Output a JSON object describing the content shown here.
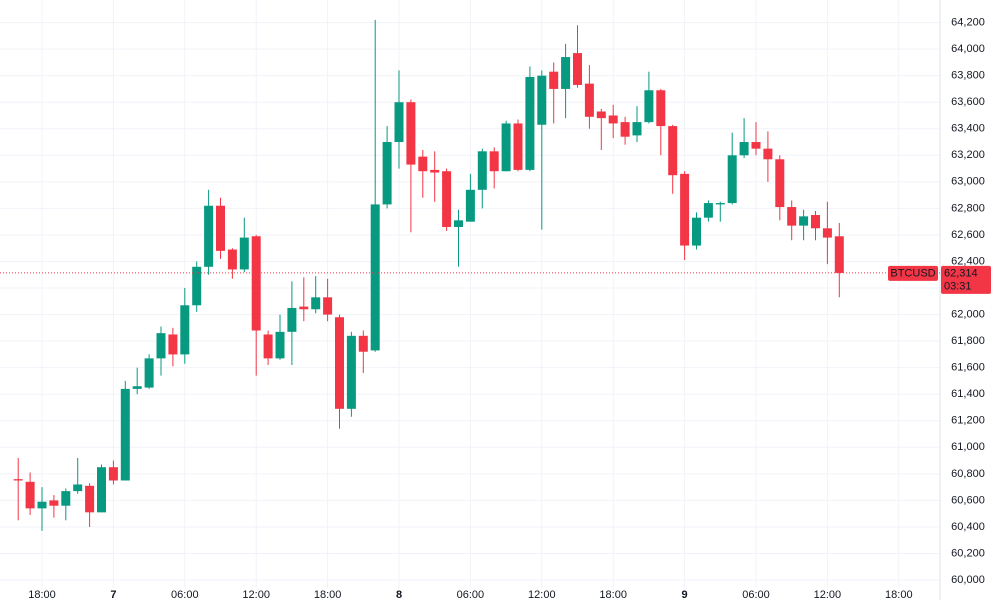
{
  "chart_data": {
    "type": "candlestick",
    "symbol": "BTCUSD",
    "last_price": {
      "value": 62314,
      "label": "62,314"
    },
    "countdown": "03:31",
    "up_color": "#089981",
    "down_color": "#f23645",
    "grid": true,
    "categories": [
      null,
      null,
      "18:00",
      null,
      null,
      null,
      null,
      null,
      "7",
      null,
      null,
      null,
      null,
      null,
      "06:00",
      null,
      null,
      null,
      null,
      null,
      "12:00",
      null,
      null,
      null,
      null,
      null,
      "18:00",
      null,
      null,
      null,
      null,
      null,
      "8",
      null,
      null,
      null,
      null,
      null,
      "06:00",
      null,
      null,
      null,
      null,
      null,
      "12:00",
      null,
      null,
      null,
      null,
      null,
      "18:00",
      null,
      null,
      null,
      null,
      null,
      "9",
      null,
      null,
      null,
      null,
      null,
      "06:00",
      null,
      null,
      null,
      null,
      null,
      "12:00",
      null,
      null,
      null,
      null,
      null,
      "18:00"
    ],
    "open": [
      60760,
      60740,
      60540,
      60600,
      60560,
      60670,
      60710,
      60510,
      60850,
      60750,
      61440,
      61450,
      61670,
      61850,
      61700,
      62070,
      62360,
      62820,
      62490,
      62340,
      62590,
      61850,
      61670,
      61870,
      62060,
      62040,
      62130,
      61980,
      61290,
      61840,
      61730,
      62830,
      63300,
      63600,
      63190,
      63090,
      63080,
      62660,
      62700,
      62940,
      63230,
      63080,
      63440,
      63090,
      63430,
      63830,
      63700,
      63970,
      63740,
      63530,
      63500,
      63450,
      63350,
      63450,
      63690,
      63420,
      63060,
      62520,
      62730,
      62830,
      62840,
      63200,
      63300,
      63250,
      63170,
      62810,
      62670,
      62750,
      62650,
      62590,
      null,
      null,
      null,
      null,
      null
    ],
    "high": [
      60920,
      60810,
      60700,
      60640,
      60690,
      60920,
      60730,
      60870,
      60900,
      61500,
      61600,
      61700,
      61910,
      61900,
      62200,
      62400,
      62940,
      62880,
      62500,
      62730,
      62600,
      61880,
      62000,
      62250,
      62280,
      62290,
      62270,
      62000,
      61870,
      61880,
      64220,
      63420,
      63840,
      63620,
      63240,
      63230,
      63100,
      62790,
      63060,
      63250,
      63260,
      63460,
      63470,
      63870,
      63840,
      63900,
      64040,
      64180,
      63880,
      63550,
      63580,
      63490,
      63570,
      63830,
      63700,
      63430,
      63080,
      62770,
      62860,
      62850,
      63370,
      63480,
      63450,
      63380,
      63200,
      62860,
      62790,
      62780,
      62850,
      62690,
      null,
      null,
      null,
      null,
      null
    ],
    "low": [
      60450,
      60490,
      60370,
      60470,
      60450,
      60650,
      60400,
      60510,
      60720,
      60750,
      61400,
      61440,
      61540,
      61610,
      61630,
      62020,
      62300,
      62420,
      62270,
      62320,
      61540,
      61620,
      61660,
      61620,
      61950,
      62010,
      61950,
      61140,
      61230,
      61560,
      61720,
      62800,
      63100,
      62620,
      62880,
      62850,
      62630,
      62360,
      62700,
      62800,
      62950,
      63080,
      63080,
      63080,
      62640,
      63440,
      63480,
      63710,
      63400,
      63240,
      63330,
      63280,
      63300,
      63440,
      63200,
      62910,
      62410,
      62490,
      62700,
      62700,
      62830,
      63180,
      63200,
      63000,
      62710,
      62560,
      62560,
      62560,
      62380,
      62130,
      null,
      null,
      null,
      null,
      null
    ],
    "close": [
      60750,
      60540,
      60590,
      60560,
      60670,
      60720,
      60510,
      60850,
      60750,
      61440,
      61460,
      61670,
      61860,
      61700,
      62070,
      62360,
      62820,
      62480,
      62340,
      62580,
      61880,
      61670,
      61870,
      62050,
      62040,
      62130,
      62000,
      61290,
      61840,
      61720,
      62830,
      63300,
      63600,
      63130,
      63080,
      63070,
      62660,
      62710,
      62940,
      63230,
      63080,
      63440,
      63090,
      63790,
      63800,
      63700,
      63940,
      63730,
      63490,
      63480,
      63440,
      63340,
      63450,
      63690,
      63420,
      63050,
      62520,
      62730,
      62840,
      62840,
      63200,
      63300,
      63250,
      63170,
      62810,
      62670,
      62740,
      62650,
      62580,
      62314,
      null,
      null,
      null,
      null,
      null
    ],
    "ylim": [
      59940,
      64370
    ],
    "yticks": [
      {
        "value": 60000,
        "label": "60,000"
      },
      {
        "value": 60200,
        "label": "60,200"
      },
      {
        "value": 60400,
        "label": "60,400"
      },
      {
        "value": 60600,
        "label": "60,600"
      },
      {
        "value": 60800,
        "label": "60,800"
      },
      {
        "value": 61000,
        "label": "61,000"
      },
      {
        "value": 61200,
        "label": "61,200"
      },
      {
        "value": 61400,
        "label": "61,400"
      },
      {
        "value": 61600,
        "label": "61,600"
      },
      {
        "value": 61800,
        "label": "61,800"
      },
      {
        "value": 62000,
        "label": "62,000"
      },
      {
        "value": 62200,
        "label": "62,200"
      },
      {
        "value": 62400,
        "label": "62,400"
      },
      {
        "value": 62600,
        "label": "62,600"
      },
      {
        "value": 62800,
        "label": "62,800"
      },
      {
        "value": 63000,
        "label": "63,000"
      },
      {
        "value": 63200,
        "label": "63,200"
      },
      {
        "value": 63400,
        "label": "63,400"
      },
      {
        "value": 63600,
        "label": "63,600"
      },
      {
        "value": 63800,
        "label": "63,800"
      },
      {
        "value": 64000,
        "label": "64,000"
      },
      {
        "value": 64200,
        "label": "64,200"
      }
    ]
  }
}
